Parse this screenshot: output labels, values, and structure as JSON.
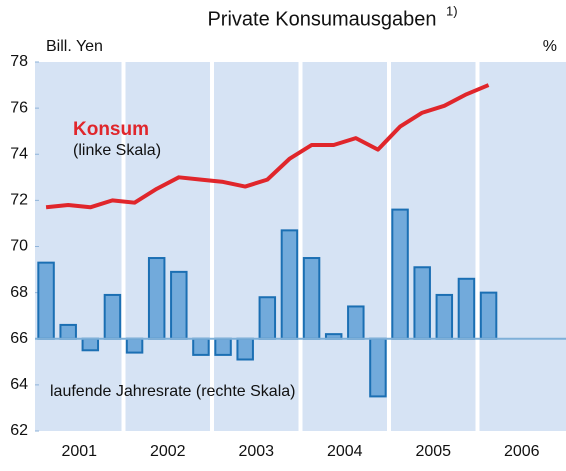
{
  "chart_data": {
    "type": "bar-line",
    "title": "Private Konsumausgaben",
    "title_note": "1)",
    "y_label": "Bill. Yen",
    "y2_label": "%",
    "annotations": [
      "Konsum",
      "(linke Skala)",
      "laufende Jahresrate (rechte Skala)"
    ],
    "x": [
      2001.125,
      2001.375,
      2001.625,
      2001.875,
      2002.125,
      2002.375,
      2002.625,
      2002.875,
      2003.125,
      2003.375,
      2003.625,
      2003.875,
      2004.125,
      2004.375,
      2004.625,
      2004.875,
      2005.125,
      2005.375,
      2005.625,
      2005.875,
      2006.125
    ],
    "xlim": [
      2001,
      2007
    ],
    "xticks": [
      2001,
      2002,
      2003,
      2004,
      2005,
      2006
    ],
    "ylim": [
      62,
      78
    ],
    "yticks": [
      62,
      64,
      66,
      68,
      70,
      72,
      74,
      76,
      78
    ],
    "y2lim": [
      -4,
      12
    ],
    "series": [
      {
        "name": "Konsum",
        "type": "line",
        "color": "#e0262b",
        "values": [
          71.7,
          71.8,
          71.7,
          72.0,
          71.9,
          72.5,
          73.0,
          72.9,
          72.8,
          72.6,
          72.9,
          73.8,
          74.4,
          74.4,
          74.7,
          74.2,
          75.2,
          75.8,
          76.1,
          76.6,
          77.0
        ]
      },
      {
        "name": "laufende Jahresrate",
        "type": "bar",
        "axis": "y2",
        "color": "#72aadb",
        "edge_color": "#1b6fb3",
        "values": [
          3.3,
          0.6,
          -0.5,
          1.9,
          -0.6,
          3.5,
          2.9,
          -0.7,
          -0.7,
          -0.9,
          1.8,
          4.7,
          3.5,
          0.2,
          1.4,
          -2.5,
          5.6,
          3.1,
          1.9,
          2.6,
          2.0
        ]
      }
    ],
    "background": "#d6e3f4"
  }
}
